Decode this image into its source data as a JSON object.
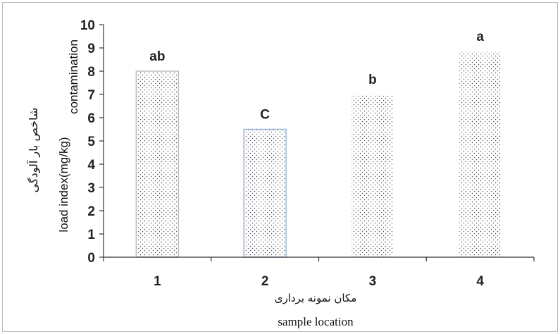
{
  "chart_data": {
    "type": "bar",
    "categories": [
      "1",
      "2",
      "3",
      "4"
    ],
    "values": [
      8.0,
      5.5,
      7.0,
      8.85
    ],
    "annotations": [
      "ab",
      "C",
      "b",
      "a"
    ],
    "ylim": [
      0,
      10
    ],
    "yticks": [
      "0",
      "1",
      "2",
      "3",
      "4",
      "5",
      "6",
      "7",
      "8",
      "9",
      "10"
    ],
    "xlabel_fa": "مکان نمونه برداری",
    "xlabel": "sample location",
    "ylabel_fa": "شاخص بار آلودگی",
    "ylabel_en_1": "load index(mg/kg)",
    "ylabel_en_2": "contamination",
    "bar_fill": "#ffffff",
    "bar_dot_color": "#555555",
    "bar_outlines": [
      "#bdbdbd",
      "#9ab6dc",
      "#ffffff",
      "#ffffff"
    ]
  }
}
